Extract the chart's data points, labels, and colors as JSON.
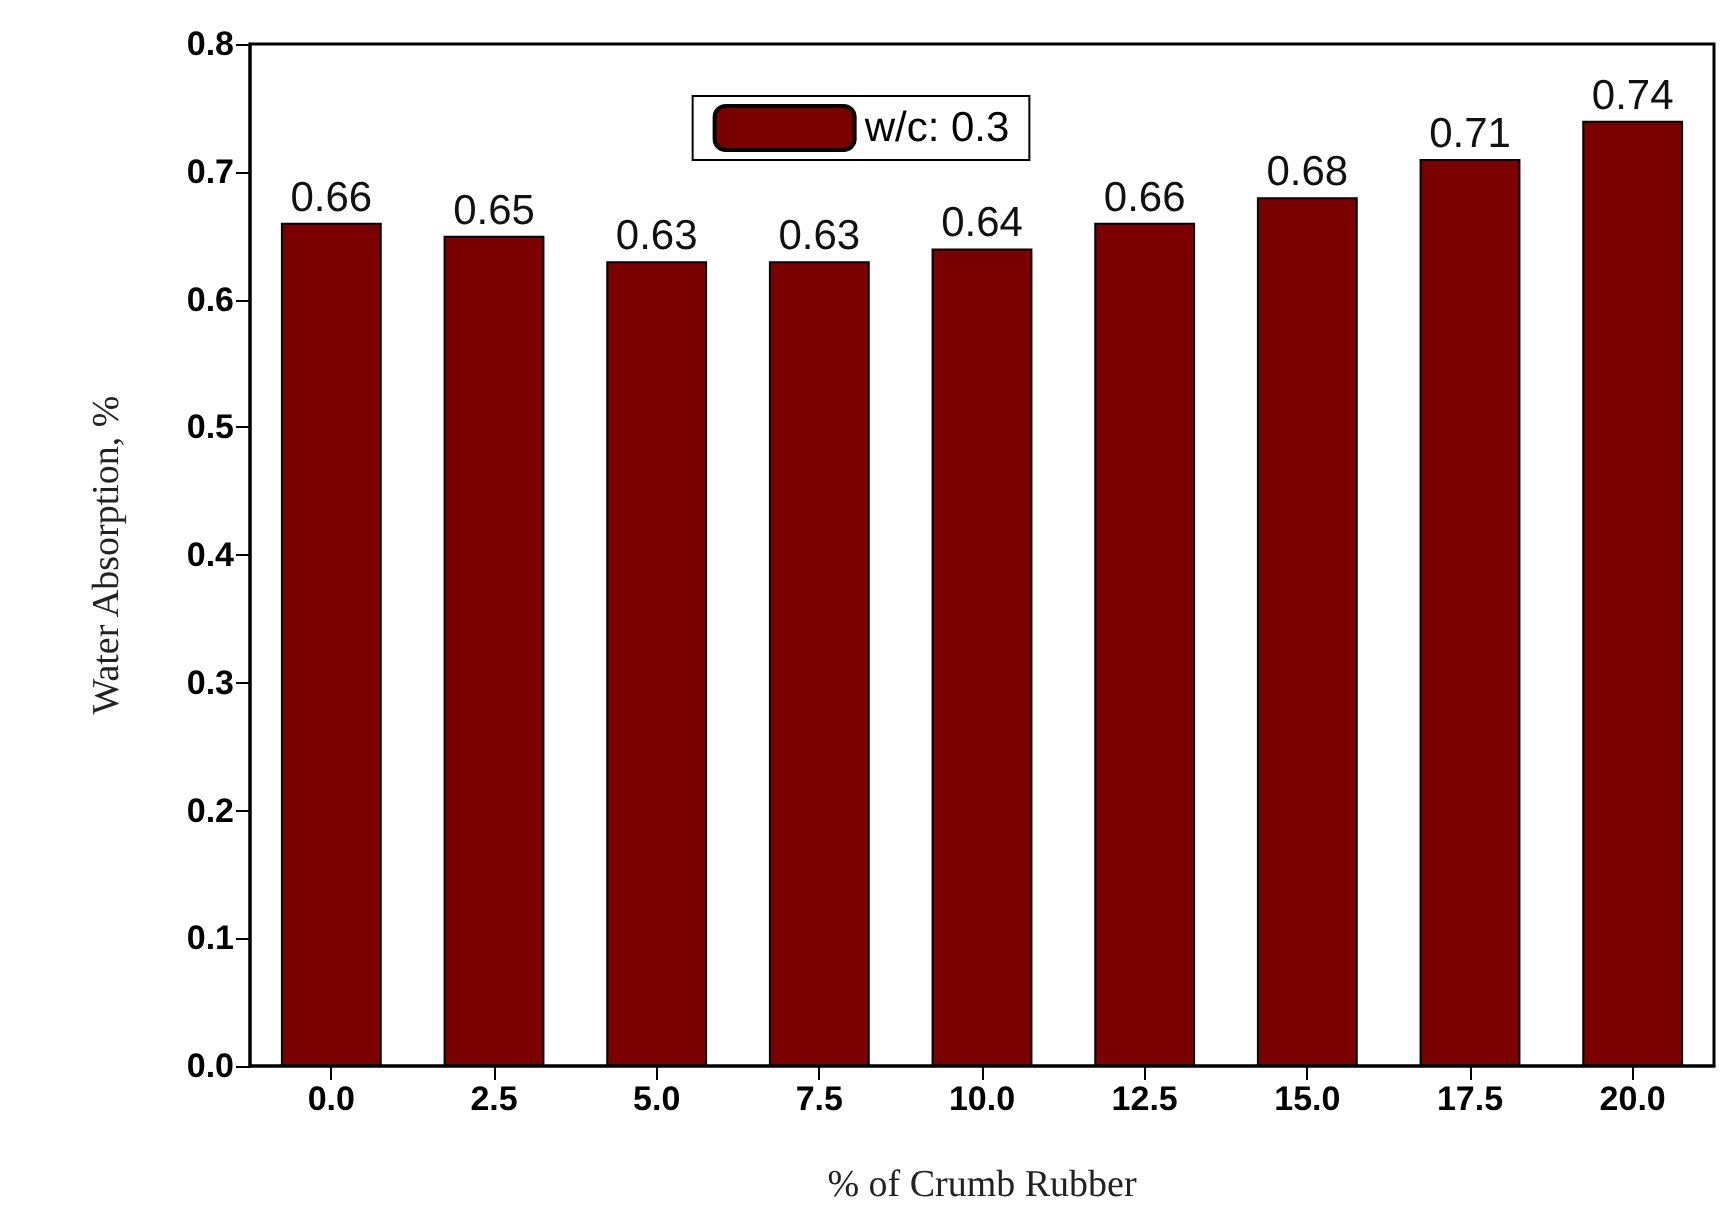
{
  "chart_data": {
    "type": "bar",
    "xlabel": "% of Crumb Rubber",
    "ylabel": "Water Absorption, %",
    "categories": [
      "0.0",
      "2.5",
      "5.0",
      "7.5",
      "10.0",
      "12.5",
      "15.0",
      "17.5",
      "20.0"
    ],
    "series": [
      {
        "name": "w/c: 0.3",
        "color": "#7b0000",
        "values": [
          0.66,
          0.65,
          0.63,
          0.63,
          0.64,
          0.66,
          0.68,
          0.71,
          0.74
        ]
      }
    ],
    "ylim": [
      0,
      0.8
    ],
    "yticks": [
      {
        "value": 0,
        "label": "0.0"
      },
      {
        "value": 0.1,
        "label": "0.1"
      },
      {
        "value": 0.2,
        "label": "0.2"
      },
      {
        "value": 0.3,
        "label": "0.3"
      },
      {
        "value": 0.4,
        "label": "0.4"
      },
      {
        "value": 0.5,
        "label": "0.5"
      },
      {
        "value": 0.6,
        "label": "0.6"
      },
      {
        "value": 0.7,
        "label": "0.7"
      },
      {
        "value": 0.8,
        "label": "0.8"
      }
    ],
    "data_labels": true,
    "grid": false,
    "legend": "top"
  }
}
